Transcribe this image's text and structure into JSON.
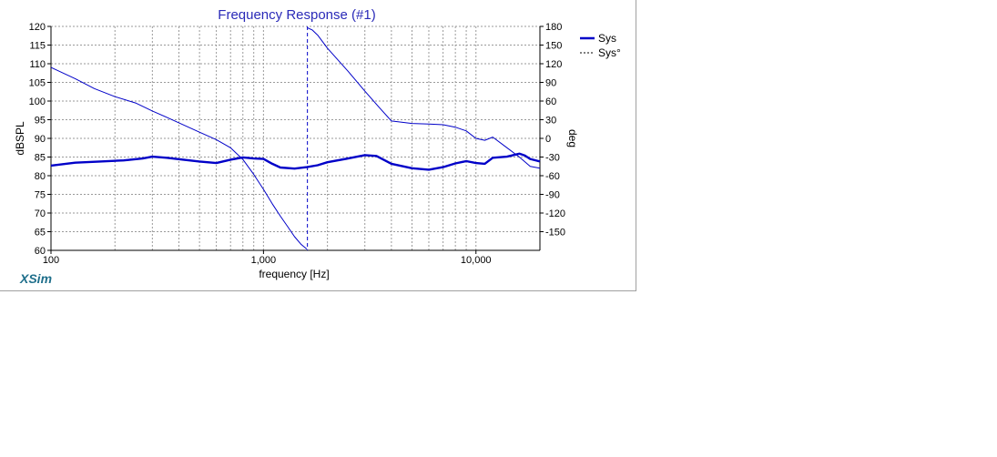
{
  "app": {
    "brand": "XSim"
  },
  "chart_data": {
    "type": "line",
    "title": "Frequency Response (#1)",
    "xlabel": "frequency [Hz]",
    "ylabel": "dBSPL",
    "y2label": "deg",
    "xscale": "log",
    "xlim": [
      100,
      20000
    ],
    "ylim": [
      60,
      120
    ],
    "y2lim": [
      -180,
      180
    ],
    "x_tick_labels": [
      {
        "value": 100,
        "label": "100"
      },
      {
        "value": 1000,
        "label": "1,000"
      },
      {
        "value": 10000,
        "label": "10,000"
      }
    ],
    "y_ticks": [
      60,
      65,
      70,
      75,
      80,
      85,
      90,
      95,
      100,
      105,
      110,
      115,
      120
    ],
    "y2_ticks": [
      -150,
      -120,
      -90,
      -60,
      -30,
      0,
      30,
      60,
      90,
      120,
      150,
      180
    ],
    "grid": true,
    "legend_position": "top-right",
    "colors": {
      "series": "#0000c8",
      "title": "#2a2ab8",
      "grid": "#9a9a9a"
    },
    "series": [
      {
        "name": "Sys",
        "axis": "left",
        "style": "solid-thick",
        "x": [
          100,
          130,
          170,
          220,
          270,
          300,
          350,
          420,
          500,
          600,
          700,
          800,
          900,
          1000,
          1100,
          1200,
          1400,
          1600,
          1800,
          2000,
          2500,
          3000,
          3400,
          4000,
          5000,
          6000,
          7000,
          8000,
          9000,
          10000,
          11000,
          12000,
          14000,
          16000,
          17000,
          18000,
          20000
        ],
        "y": [
          82.7,
          83.5,
          83.8,
          84.1,
          84.6,
          85.1,
          84.8,
          84.3,
          83.8,
          83.4,
          84.3,
          84.9,
          84.6,
          84.5,
          83.2,
          82.2,
          81.9,
          82.3,
          82.8,
          83.6,
          84.6,
          85.5,
          85.3,
          83.2,
          82.0,
          81.6,
          82.3,
          83.3,
          83.9,
          83.4,
          83.2,
          84.8,
          85.1,
          85.9,
          85.4,
          84.5,
          83.8
        ]
      },
      {
        "name": "Sys°",
        "axis": "right",
        "style": "thin",
        "x": [
          100,
          130,
          160,
          200,
          250,
          300,
          350,
          400,
          500,
          600,
          700,
          800,
          900,
          1000,
          1100,
          1200,
          1300,
          1400,
          1500,
          1600,
          1610,
          1700,
          1800,
          2000,
          2500,
          3000,
          3500,
          4000,
          5000,
          6000,
          7000,
          8000,
          9000,
          10000,
          11000,
          12000,
          14000,
          16000,
          18000,
          20000
        ],
        "y": [
          114,
          96,
          80,
          67,
          57,
          44,
          34,
          25,
          10,
          -2,
          -15,
          -34,
          -58,
          -82,
          -105,
          -125,
          -142,
          -158,
          -170,
          -178,
          178,
          174,
          166,
          145,
          108,
          76,
          50,
          28,
          24,
          23,
          22,
          18,
          12,
          0,
          -3,
          2,
          -15,
          -30,
          -45,
          -48
        ]
      }
    ],
    "vertical_marker": {
      "x": 1610
    }
  }
}
